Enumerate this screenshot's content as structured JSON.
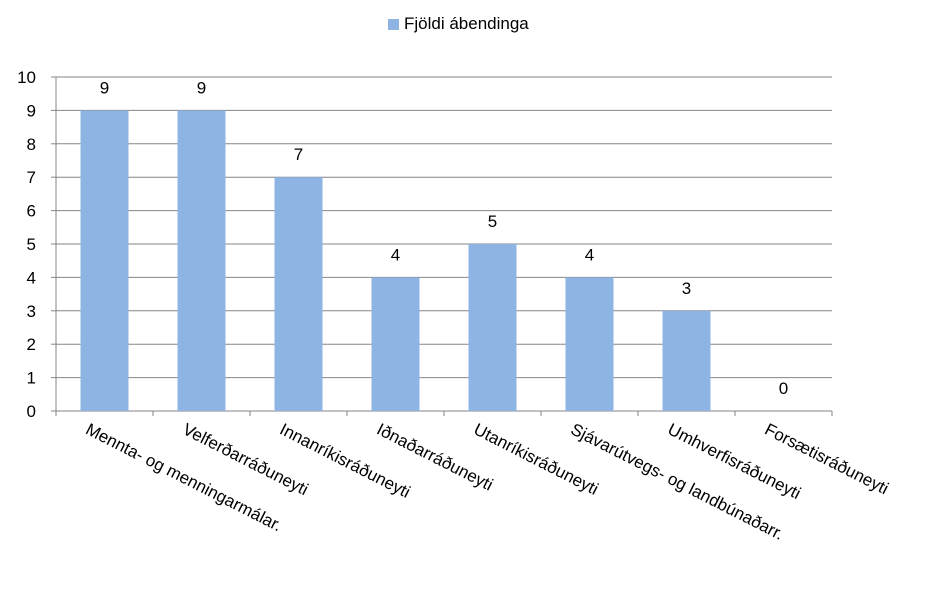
{
  "chart_data": {
    "type": "bar",
    "legend": {
      "label": "Fjöldi ábendinga",
      "position": "top"
    },
    "categories": [
      "Mennta- og menningarmálar.",
      "Velferðarráðuneyti",
      "Innanríkisráðuneyti",
      "Iðnaðarráðuneyti",
      "Utanríkisráðuneyti",
      "Sjávarútvegs- og landbúnaðarr.",
      "Umhverfisráðuneyti",
      "Forsætisráðuneyti"
    ],
    "series": [
      {
        "name": "Fjöldi ábendinga",
        "values": [
          9,
          9,
          7,
          4,
          5,
          4,
          3,
          0
        ]
      }
    ],
    "ylim": [
      0,
      10
    ],
    "yticks": [
      0,
      1,
      2,
      3,
      4,
      5,
      6,
      7,
      8,
      9,
      10
    ],
    "grid": true,
    "colors": {
      "bar": "#8EB4E3",
      "grid": "#868686",
      "axis": "#868686",
      "text": "#000000"
    }
  }
}
